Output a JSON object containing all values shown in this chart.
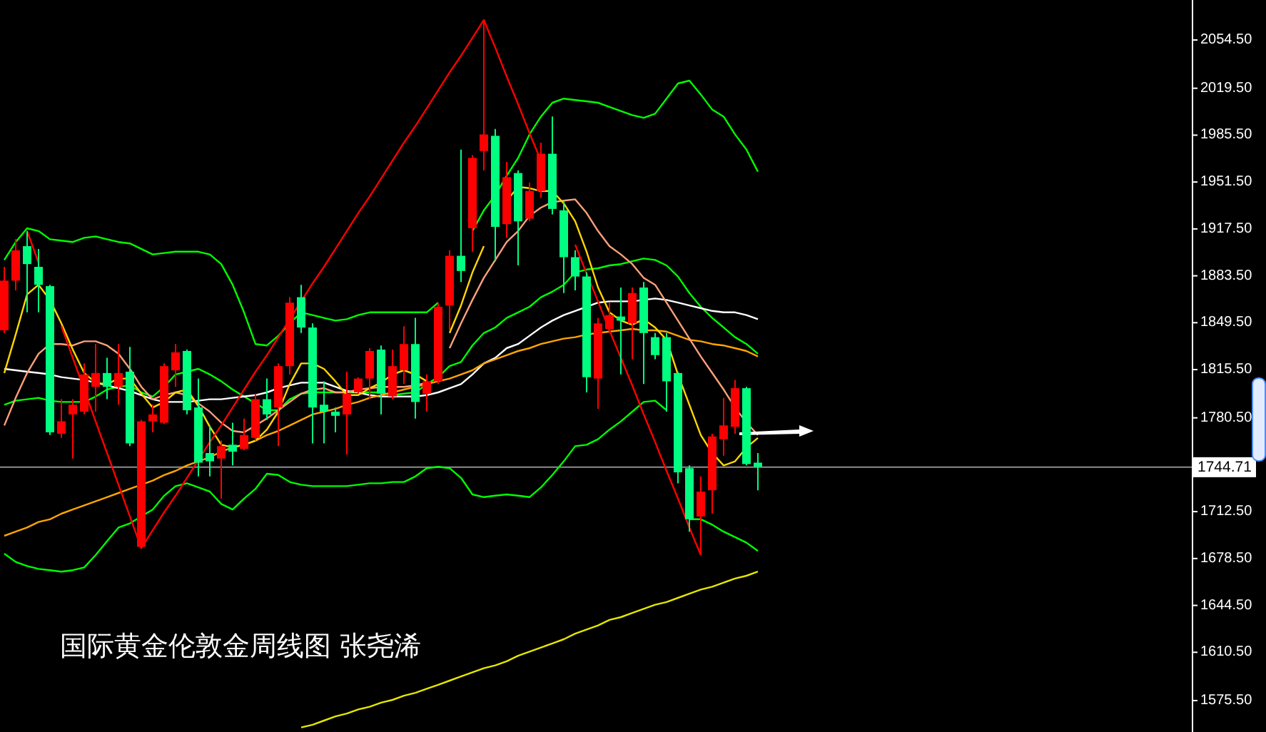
{
  "chart_data": {
    "type": "candlestick",
    "title": "国际黄金伦敦金周线图 张尧浠",
    "categories": [
      null,
      null,
      null,
      null,
      null,
      null,
      null,
      null,
      null,
      null,
      null,
      null,
      null,
      null,
      null,
      null,
      null,
      null,
      null,
      null,
      null,
      null,
      null,
      null,
      null,
      null,
      null,
      null,
      null,
      null,
      null,
      null,
      null,
      null,
      null,
      null,
      null,
      null,
      null,
      null,
      null,
      null,
      null,
      null,
      null,
      null,
      null,
      null,
      null,
      null,
      null,
      null,
      null,
      null,
      null,
      null,
      null,
      null,
      null,
      null,
      null,
      null,
      null,
      null,
      null,
      null,
      null
    ],
    "ohlc": [
      [
        1844,
        1890,
        1842,
        1880
      ],
      [
        1880,
        1910,
        1873,
        1902
      ],
      [
        1905,
        1916,
        1857,
        1892
      ],
      [
        1890,
        1903,
        1857,
        1877
      ],
      [
        1876,
        1877,
        1768,
        1770
      ],
      [
        1769,
        1794,
        1766,
        1778
      ],
      [
        1783,
        1794,
        1751,
        1790
      ],
      [
        1785,
        1820,
        1783,
        1812
      ],
      [
        1803,
        1834,
        1785,
        1813
      ],
      [
        1813,
        1824,
        1794,
        1803
      ],
      [
        1803,
        1834,
        1790,
        1813
      ],
      [
        1814,
        1832,
        1760,
        1762
      ],
      [
        1687,
        1779,
        1686,
        1778
      ],
      [
        1778,
        1790,
        1770,
        1783
      ],
      [
        1777,
        1820,
        1776,
        1818
      ],
      [
        1815,
        1834,
        1803,
        1828
      ],
      [
        1829,
        1830,
        1783,
        1786
      ],
      [
        1788,
        1809,
        1738,
        1748
      ],
      [
        1755,
        1775,
        1738,
        1749
      ],
      [
        1751,
        1764,
        1722,
        1760
      ],
      [
        1761,
        1777,
        1746,
        1756
      ],
      [
        1758,
        1780,
        1757,
        1768
      ],
      [
        1766,
        1798,
        1764,
        1794
      ],
      [
        1794,
        1809,
        1779,
        1783
      ],
      [
        1788,
        1820,
        1760,
        1818
      ],
      [
        1818,
        1868,
        1812,
        1864
      ],
      [
        1868,
        1877,
        1842,
        1846
      ],
      [
        1846,
        1849,
        1762,
        1788
      ],
      [
        1790,
        1807,
        1762,
        1785
      ],
      [
        1785,
        1788,
        1770,
        1782
      ],
      [
        1783,
        1814,
        1754,
        1798
      ],
      [
        1799,
        1810,
        1798,
        1809
      ],
      [
        1809,
        1831,
        1794,
        1829
      ],
      [
        1830,
        1833,
        1783,
        1798
      ],
      [
        1796,
        1830,
        1794,
        1818
      ],
      [
        1815,
        1847,
        1805,
        1834
      ],
      [
        1834,
        1853,
        1780,
        1792
      ],
      [
        1798,
        1812,
        1785,
        1807
      ],
      [
        1807,
        1864,
        1805,
        1861
      ],
      [
        1862,
        1902,
        1844,
        1898
      ],
      [
        1898,
        1975,
        1879,
        1887
      ],
      [
        1918,
        1971,
        1901,
        1969
      ],
      [
        1974,
        2069,
        1960,
        1986
      ],
      [
        1985,
        1990,
        1894,
        1919
      ],
      [
        1921,
        1966,
        1911,
        1955
      ],
      [
        1958,
        1960,
        1891,
        1923
      ],
      [
        1925,
        1951,
        1923,
        1945
      ],
      [
        1945,
        1980,
        1940,
        1972
      ],
      [
        1972,
        1999,
        1928,
        1932
      ],
      [
        1931,
        1938,
        1871,
        1897
      ],
      [
        1897,
        1902,
        1873,
        1883
      ],
      [
        1883,
        1886,
        1799,
        1810
      ],
      [
        1809,
        1853,
        1787,
        1849
      ],
      [
        1845,
        1864,
        1842,
        1855
      ],
      [
        1854,
        1875,
        1812,
        1851
      ],
      [
        1849,
        1875,
        1823,
        1871
      ],
      [
        1875,
        1879,
        1805,
        1842
      ],
      [
        1839,
        1842,
        1823,
        1826
      ],
      [
        1839,
        1842,
        1785,
        1807
      ],
      [
        1813,
        1814,
        1733,
        1741
      ],
      [
        1744,
        1746,
        1698,
        1707
      ],
      [
        1709,
        1738,
        1681,
        1727
      ],
      [
        1728,
        1769,
        1711,
        1767
      ],
      [
        1765,
        1795,
        1753,
        1775
      ],
      [
        1774,
        1808,
        1769,
        1802
      ],
      [
        1802,
        1803,
        1746,
        1747
      ],
      [
        1748,
        1755,
        1728,
        1745
      ]
    ],
    "colors": [
      "#ff0000",
      "#ff0000",
      "#00ff80",
      "#00ff80",
      "#00ff80",
      "#ff0000",
      "#ff0000",
      "#ff0000",
      "#ff0000",
      "#00ff80",
      "#ff0000",
      "#00ff80",
      "#ff0000",
      "#ff0000",
      "#ff0000",
      "#ff0000",
      "#00ff80",
      "#00ff80",
      "#00ff80",
      "#ff0000",
      "#00ff80",
      "#ff0000",
      "#ff0000",
      "#00ff80",
      "#ff0000",
      "#ff0000",
      "#00ff80",
      "#00ff80",
      "#00ff80",
      "#00ff80",
      "#ff0000",
      "#ff0000",
      "#ff0000",
      "#00ff80",
      "#ff0000",
      "#ff0000",
      "#00ff80",
      "#ff0000",
      "#ff0000",
      "#ff0000",
      "#00ff80",
      "#ff0000",
      "#ff0000",
      "#00ff80",
      "#ff0000",
      "#00ff80",
      "#ff0000",
      "#ff0000",
      "#00ff80",
      "#00ff80",
      "#00ff80",
      "#00ff80",
      "#ff0000",
      "#ff0000",
      "#00ff80",
      "#ff0000",
      "#00ff80",
      "#00ff80",
      "#00ff80",
      "#00ff80",
      "#00ff80",
      "#ff0000",
      "#ff0000",
      "#ff0000",
      "#ff0000",
      "#00ff80",
      "#00ff80"
    ],
    "series": [
      {
        "type": "line",
        "color": "#00ff00",
        "values": [
          1895,
          1908,
          1918,
          1916,
          1910,
          1909,
          1908,
          1911,
          1912,
          1910,
          1908,
          1907,
          1903,
          1899,
          1900,
          1901,
          1901,
          1901,
          1899,
          1892,
          1877,
          1857,
          1834,
          1833,
          1840,
          1849,
          1857,
          1855,
          1853,
          1851,
          1852,
          1855,
          1857,
          1857,
          1857,
          1857,
          1857,
          1857,
          1864,
          null,
          null,
          1916,
          1931,
          1942,
          1956,
          1969,
          1986,
          1999,
          2009,
          2012,
          2011,
          2010,
          2009,
          2006,
          2003,
          2000,
          1998,
          2001,
          2012,
          2023,
          2025,
          2015,
          2004,
          1999,
          1986,
          1975,
          1959
        ]
      },
      {
        "type": "line",
        "color": "#00ff00",
        "values": [
          1790,
          1793,
          1794,
          1795,
          1793,
          1792,
          1792,
          1792,
          1796,
          1801,
          1803,
          1804,
          1799,
          1796,
          1803,
          1812,
          1814,
          1816,
          1812,
          1807,
          1801,
          1796,
          1791,
          1786,
          1786,
          1794,
          1798,
          1799,
          1799,
          1799,
          1799,
          1799,
          1799,
          1799,
          1797,
          1798,
          1799,
          1805,
          1810,
          1818,
          1821,
          1833,
          1842,
          1846,
          1853,
          1857,
          1861,
          1868,
          1872,
          1877,
          1886,
          1888,
          1889,
          1891,
          1892,
          1894,
          1896,
          1895,
          1891,
          1883,
          1871,
          1861,
          1853,
          1846,
          1839,
          1834,
          1827
        ]
      },
      {
        "type": "line",
        "color": "#00ff00",
        "values": [
          1682,
          1676,
          1673,
          1671,
          1670,
          1669,
          1670,
          1672,
          1681,
          1691,
          1701,
          1704,
          1709,
          1714,
          1724,
          1731,
          1733,
          1730,
          1727,
          1718,
          1714,
          1722,
          1729,
          1740,
          1739,
          1734,
          1732,
          1731,
          1731,
          1731,
          1731,
          1732,
          1733,
          1733,
          1734,
          1734,
          1738,
          1744,
          1745,
          1744,
          1737,
          1725,
          1723,
          1724,
          1725,
          1724,
          1723,
          1730,
          1739,
          1749,
          1760,
          1761,
          1765,
          1772,
          1778,
          1785,
          1792,
          1793,
          1786,
          null,
          1707,
          1707,
          1703,
          1698,
          1694,
          1690,
          1684
        ]
      },
      {
        "type": "line",
        "color": "#ffffff",
        "values": [
          1816,
          1815,
          1814,
          1813,
          1812,
          1810,
          1809,
          1808,
          1806,
          1804,
          1802,
          1800,
          1797,
          1794,
          1792,
          1792,
          1792,
          1793,
          1794,
          1794,
          1795,
          1796,
          1797,
          1799,
          1802,
          1804,
          1806,
          1806,
          1806,
          1803,
          1800,
          1799,
          1797,
          1796,
          1796,
          1796,
          1796,
          1797,
          1799,
          1802,
          1805,
          1812,
          1820,
          1824,
          1831,
          1834,
          1840,
          1846,
          1851,
          1855,
          1858,
          1861,
          1864,
          1865,
          1865,
          1865,
          1866,
          1867,
          1866,
          1864,
          1862,
          1860,
          1858,
          1857,
          1857,
          1855,
          1852
        ]
      },
      {
        "type": "line",
        "color": "#ffa500",
        "values": [
          1695,
          1698,
          1701,
          1705,
          1707,
          1711,
          1714,
          1717,
          1720,
          1723,
          1726,
          1729,
          1732,
          1735,
          1739,
          1742,
          1746,
          1749,
          1752,
          1756,
          1759,
          1761,
          1764,
          1768,
          1771,
          1775,
          1779,
          1783,
          1785,
          1787,
          1790,
          1792,
          1795,
          1797,
          1799,
          1801,
          1803,
          1805,
          1807,
          1809,
          1812,
          1815,
          1820,
          1823,
          1826,
          1829,
          1831,
          1834,
          1836,
          1838,
          1839,
          1841,
          1842,
          1843,
          1844,
          1845,
          1844,
          1844,
          1843,
          1840,
          1837,
          1836,
          1834,
          1833,
          1831,
          1829,
          1825
        ]
      },
      {
        "type": "line",
        "color": "#ffa07a",
        "values": [
          1775,
          1795,
          1813,
          1827,
          1834,
          1834,
          1833,
          1836,
          1836,
          1833,
          1827,
          1816,
          1803,
          1794,
          1797,
          1799,
          1797,
          1791,
          1785,
          1777,
          1771,
          1770,
          1775,
          1780,
          1786,
          1792,
          1798,
          1801,
          1802,
          1799,
          1799,
          1801,
          1802,
          1803,
          1803,
          1803,
          1804,
          1806,
          null,
          1831,
          1849,
          1866,
          1882,
          1895,
          1908,
          1916,
          1927,
          1933,
          1937,
          1938,
          1939,
          1929,
          1916,
          1905,
          1899,
          1892,
          1882,
          1877,
          1864,
          1851,
          1838,
          1825,
          1813,
          1801,
          1788,
          1777,
          1768
        ]
      },
      {
        "type": "line",
        "color": "#ffd700",
        "values": [
          1813,
          1841,
          1870,
          1877,
          1866,
          1849,
          1830,
          1813,
          1806,
          1805,
          1809,
          1809,
          1798,
          1788,
          1792,
          1799,
          1801,
          1789,
          1774,
          1761,
          1759,
          1761,
          1764,
          1772,
          1785,
          1805,
          1820,
          1820,
          1816,
          1807,
          1797,
          1797,
          1802,
          1806,
          1812,
          1815,
          1812,
          1807,
          null,
          1842,
          1862,
          1886,
          1905,
          null,
          1938,
          1948,
          1947,
          1945,
          1945,
          1936,
          1923,
          1901,
          1875,
          1857,
          1851,
          1848,
          1852,
          1846,
          1837,
          1812,
          1790,
          1768,
          1755,
          1746,
          1749,
          1759,
          1766
        ]
      },
      {
        "type": "line",
        "color": "#e6e600",
        "values": [
          null,
          null,
          null,
          null,
          null,
          null,
          null,
          null,
          null,
          null,
          null,
          null,
          null,
          null,
          null,
          null,
          null,
          null,
          null,
          null,
          null,
          null,
          null,
          null,
          null,
          null,
          1556,
          1558,
          1561,
          1564,
          1566,
          1569,
          1571,
          1574,
          1576,
          1579,
          1581,
          1584,
          1587,
          1590,
          1593,
          1596,
          1599,
          1601,
          1604,
          1608,
          1611,
          1614,
          1617,
          1620,
          1624,
          1627,
          1630,
          1634,
          1636,
          1639,
          1642,
          1645,
          1647,
          1650,
          1653,
          1656,
          1658,
          1661,
          1664,
          1666,
          1669
        ]
      },
      {
        "type": "line",
        "color": "#ff0000",
        "values": [
          null,
          null,
          1916,
          1893,
          null,
          1847,
          1824,
          1801,
          1778,
          1755,
          1732,
          1709,
          1686,
          1699,
          1712,
          1724,
          1737,
          1750,
          1763,
          1775,
          1788,
          1801,
          1814,
          1826,
          1839,
          1852,
          1865,
          1878,
          1890,
          1903,
          1916,
          1929,
          1941,
          1954,
          1967,
          1980,
          1992,
          2005,
          2018,
          2031,
          2043,
          2056,
          2069,
          2049,
          2028,
          2008,
          1987,
          1967,
          null,
          null,
          1906,
          1885,
          1865,
          1844,
          1824,
          1804,
          1783,
          1763,
          1742,
          1722,
          1701,
          1681,
          null,
          null,
          null,
          null,
          null
        ]
      }
    ],
    "ylim": [
      1552.7,
      2083.5
    ],
    "yticks": [
      {
        "value": 2054.5,
        "label": "2054.50"
      },
      {
        "value": 2019.5,
        "label": "2019.50"
      },
      {
        "value": 1985.5,
        "label": "1985.50"
      },
      {
        "value": 1951.5,
        "label": "1951.50"
      },
      {
        "value": 1917.5,
        "label": "1917.50"
      },
      {
        "value": 1883.5,
        "label": "1883.50"
      },
      {
        "value": 1849.5,
        "label": "1849.50"
      },
      {
        "value": 1815.5,
        "label": "1815.50"
      },
      {
        "value": 1780.5,
        "label": "1780.50"
      },
      {
        "value": 1712.5,
        "label": "1712.50"
      },
      {
        "value": 1678.5,
        "label": "1678.50"
      },
      {
        "value": 1644.5,
        "label": "1644.50"
      },
      {
        "value": 1610.5,
        "label": "1610.50"
      },
      {
        "value": 1575.5,
        "label": "1575.50"
      }
    ],
    "ref_lines": [
      {
        "axis": "y",
        "value": 1744.71,
        "label": "1744.71",
        "color": "#8c8c8c"
      }
    ],
    "tick_labels": "y"
  }
}
